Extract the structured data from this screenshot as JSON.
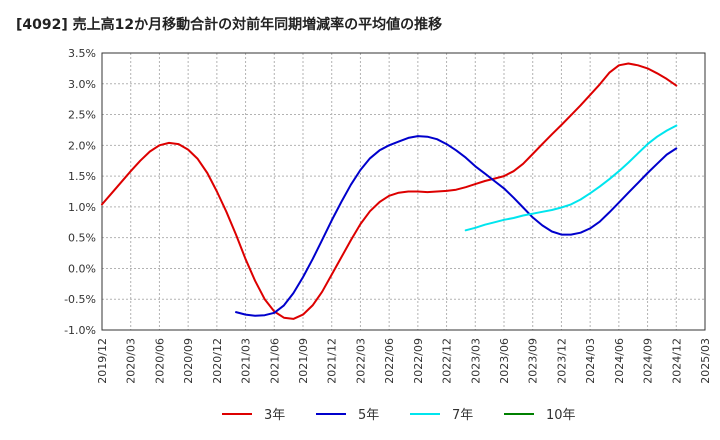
{
  "chart_data": {
    "type": "line",
    "title": "[4092]  売上高12か月移動合計の対前年同期増減率の平均値の推移",
    "xlabel": "",
    "ylabel": "",
    "x_ticks": [
      "2019/12",
      "2020/03",
      "2020/06",
      "2020/09",
      "2020/12",
      "2021/03",
      "2021/06",
      "2021/09",
      "2021/12",
      "2022/03",
      "2022/06",
      "2022/09",
      "2022/12",
      "2023/03",
      "2023/06",
      "2023/09",
      "2023/12",
      "2024/03",
      "2024/06",
      "2024/09",
      "2024/12",
      "2025/03"
    ],
    "y_ticks": [
      "3.5%",
      "3.0%",
      "2.5%",
      "2.0%",
      "1.5%",
      "1.0%",
      "0.5%",
      "0.0%",
      "-0.5%",
      "-1.0%"
    ],
    "ylim": [
      -1.0,
      3.5
    ],
    "grid": true,
    "legend_position": "bottom",
    "series": [
      {
        "name": "3年",
        "color": "#dd0000",
        "x": [
          "2019/12",
          "2020/01",
          "2020/02",
          "2020/03",
          "2020/04",
          "2020/05",
          "2020/06",
          "2020/07",
          "2020/08",
          "2020/09",
          "2020/10",
          "2020/11",
          "2020/12",
          "2021/01",
          "2021/02",
          "2021/03",
          "2021/04",
          "2021/05",
          "2021/06",
          "2021/07",
          "2021/08",
          "2021/09",
          "2021/10",
          "2021/11",
          "2021/12",
          "2022/01",
          "2022/02",
          "2022/03",
          "2022/04",
          "2022/05",
          "2022/06",
          "2022/07",
          "2022/08",
          "2022/09",
          "2022/10",
          "2022/11",
          "2022/12",
          "2023/01",
          "2023/02",
          "2023/03",
          "2023/04",
          "2023/05",
          "2023/06",
          "2023/07",
          "2023/08",
          "2023/09",
          "2023/10",
          "2023/11",
          "2023/12",
          "2024/01",
          "2024/02",
          "2024/03",
          "2024/04",
          "2024/05",
          "2024/06",
          "2024/07",
          "2024/08",
          "2024/09",
          "2024/10",
          "2024/11",
          "2024/12"
        ],
        "values": [
          1.04,
          1.22,
          1.4,
          1.58,
          1.75,
          1.9,
          2.0,
          2.04,
          2.02,
          1.93,
          1.78,
          1.55,
          1.25,
          0.92,
          0.55,
          0.15,
          -0.2,
          -0.5,
          -0.7,
          -0.8,
          -0.82,
          -0.75,
          -0.6,
          -0.38,
          -0.1,
          0.18,
          0.46,
          0.72,
          0.93,
          1.08,
          1.18,
          1.23,
          1.25,
          1.25,
          1.24,
          1.25,
          1.26,
          1.28,
          1.32,
          1.37,
          1.42,
          1.46,
          1.5,
          1.58,
          1.7,
          1.86,
          2.02,
          2.18,
          2.33,
          2.49,
          2.65,
          2.82,
          2.99,
          3.18,
          3.3,
          3.33,
          3.3,
          3.25,
          3.17,
          3.08,
          2.97
        ]
      },
      {
        "name": "5年",
        "color": "#0000cc",
        "x": [
          "2021/02",
          "2021/03",
          "2021/04",
          "2021/05",
          "2021/06",
          "2021/07",
          "2021/08",
          "2021/09",
          "2021/10",
          "2021/11",
          "2021/12",
          "2022/01",
          "2022/02",
          "2022/03",
          "2022/04",
          "2022/05",
          "2022/06",
          "2022/07",
          "2022/08",
          "2022/09",
          "2022/10",
          "2022/11",
          "2022/12",
          "2023/01",
          "2023/02",
          "2023/03",
          "2023/04",
          "2023/05",
          "2023/06",
          "2023/07",
          "2023/08",
          "2023/09",
          "2023/10",
          "2023/11",
          "2023/12",
          "2024/01",
          "2024/02",
          "2024/03",
          "2024/04",
          "2024/05",
          "2024/06",
          "2024/07",
          "2024/08",
          "2024/09",
          "2024/10",
          "2024/11",
          "2024/12"
        ],
        "values": [
          -0.71,
          -0.75,
          -0.77,
          -0.76,
          -0.72,
          -0.6,
          -0.4,
          -0.14,
          0.15,
          0.46,
          0.78,
          1.08,
          1.36,
          1.6,
          1.79,
          1.92,
          2.0,
          2.06,
          2.12,
          2.15,
          2.14,
          2.1,
          2.02,
          1.92,
          1.8,
          1.66,
          1.54,
          1.42,
          1.3,
          1.15,
          0.99,
          0.83,
          0.7,
          0.6,
          0.55,
          0.55,
          0.58,
          0.65,
          0.76,
          0.91,
          1.07,
          1.23,
          1.39,
          1.55,
          1.7,
          1.85,
          1.95
        ]
      },
      {
        "name": "7年",
        "color": "#00e5ee",
        "x": [
          "2023/02",
          "2023/03",
          "2023/04",
          "2023/05",
          "2023/06",
          "2023/07",
          "2023/08",
          "2023/09",
          "2023/10",
          "2023/11",
          "2023/12",
          "2024/01",
          "2024/02",
          "2024/03",
          "2024/04",
          "2024/05",
          "2024/06",
          "2024/07",
          "2024/08",
          "2024/09",
          "2024/10",
          "2024/11",
          "2024/12"
        ],
        "values": [
          0.62,
          0.66,
          0.71,
          0.75,
          0.79,
          0.82,
          0.86,
          0.89,
          0.92,
          0.95,
          0.99,
          1.04,
          1.12,
          1.22,
          1.33,
          1.45,
          1.58,
          1.72,
          1.87,
          2.02,
          2.14,
          2.24,
          2.32
        ]
      },
      {
        "name": "10年",
        "color": "#008000",
        "x": [],
        "values": []
      }
    ]
  }
}
